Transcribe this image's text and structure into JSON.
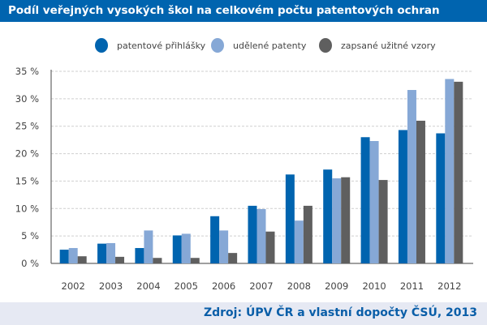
{
  "chart_data": {
    "type": "bar",
    "title": "Podíl veřejných vysokých škol na celkovém počtu patentových ochran",
    "source": "Zdroj: ÚPV ČR a vlastní dopočty ČSÚ, 2013",
    "categories": [
      "2002",
      "2003",
      "2004",
      "2005",
      "2006",
      "2007",
      "2008",
      "2009",
      "2010",
      "2011",
      "2012"
    ],
    "series": [
      {
        "name": "patentové přihlášky",
        "color": "#0064af",
        "values": [
          2.5,
          3.6,
          2.8,
          5.1,
          8.6,
          10.5,
          16.2,
          17.1,
          23.0,
          24.3,
          23.7
        ]
      },
      {
        "name": "udělené patenty",
        "color": "#86a8d6",
        "values": [
          2.8,
          3.7,
          6.0,
          5.4,
          6.0,
          9.9,
          7.8,
          15.5,
          22.3,
          31.6,
          33.6
        ]
      },
      {
        "name": "zapsané užitné vzory",
        "color": "#5f5f5f",
        "values": [
          1.3,
          1.2,
          1.0,
          1.0,
          1.9,
          5.8,
          10.5,
          15.7,
          15.2,
          26.0,
          33.1
        ]
      }
    ],
    "yticks": [
      "0 %",
      "5 %",
      "10 %",
      "15 %",
      "20 %",
      "25 %",
      "30 %",
      "35 %"
    ],
    "ylim": [
      0,
      35
    ],
    "grid": true,
    "legend": "top-center"
  }
}
